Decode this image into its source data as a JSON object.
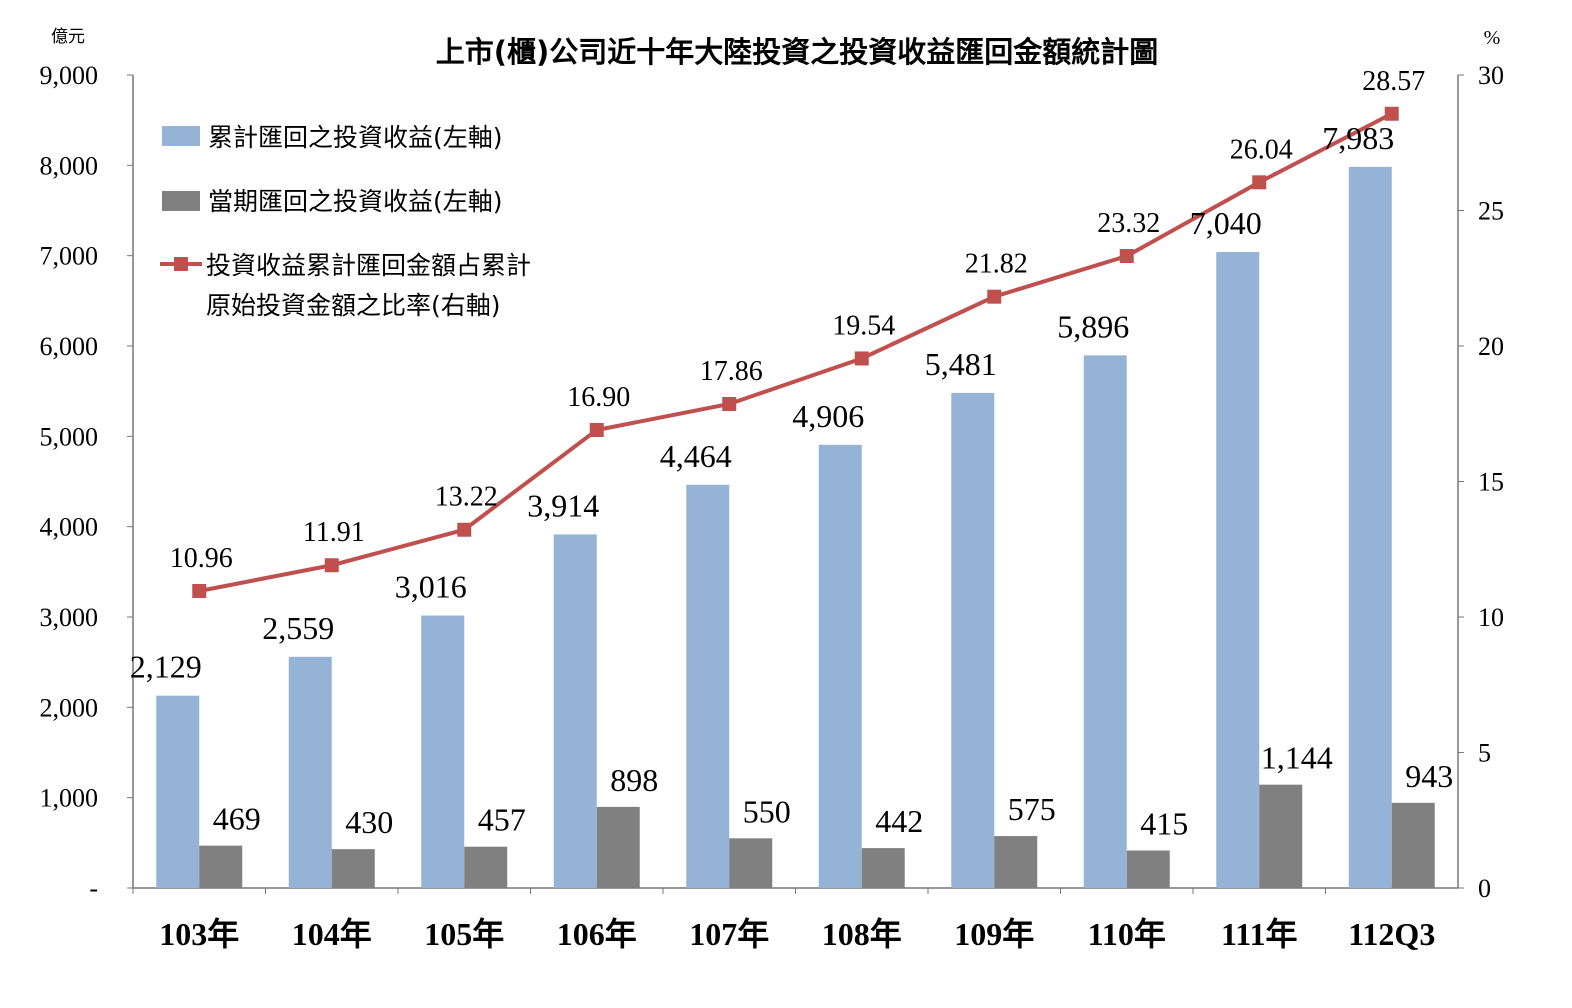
{
  "chart_data": {
    "type": "bar+line",
    "title": "上市(櫃)公司近十年大陸投資之投資收益匯回金額統計圖",
    "left_unit": "億元",
    "right_unit": "%",
    "categories": [
      "103年",
      "104年",
      "105年",
      "106年",
      "107年",
      "108年",
      "109年",
      "110年",
      "111年",
      "112Q3"
    ],
    "left_axis": {
      "range": [
        0,
        9000
      ],
      "ticks": [
        "-",
        "1,000",
        "2,000",
        "3,000",
        "4,000",
        "5,000",
        "6,000",
        "7,000",
        "8,000",
        "9,000"
      ]
    },
    "right_axis": {
      "range": [
        0,
        30
      ],
      "ticks": [
        "0",
        "5",
        "10",
        "15",
        "20",
        "25",
        "30"
      ]
    },
    "series": [
      {
        "name": "累計匯回之投資收益(左軸)",
        "type": "bar",
        "axis": "left",
        "color": "#95b3d7",
        "values": [
          2129,
          2559,
          3016,
          3914,
          4464,
          4906,
          5481,
          5896,
          7040,
          7983
        ],
        "labels": [
          "2,129",
          "2,559",
          "3,016",
          "3,914",
          "4,464",
          "4,906",
          "5,481",
          "5,896",
          "7,040",
          "7,983"
        ]
      },
      {
        "name": "當期匯回之投資收益(左軸)",
        "type": "bar",
        "axis": "left",
        "color": "#808080",
        "values": [
          469,
          430,
          457,
          898,
          550,
          442,
          575,
          415,
          1144,
          943
        ],
        "labels": [
          "469",
          "430",
          "457",
          "898",
          "550",
          "442",
          "575",
          "415",
          "1,144",
          "943"
        ]
      },
      {
        "name": "投資收益累計匯回金額占累計",
        "name_line2": "原始投資金額之比率(右軸)",
        "type": "line",
        "axis": "right",
        "color": "#c0504d",
        "values": [
          10.96,
          11.91,
          13.22,
          16.9,
          17.86,
          19.54,
          21.82,
          23.32,
          26.04,
          28.57
        ],
        "labels": [
          "10.96",
          "11.91",
          "13.22",
          "16.90",
          "17.86",
          "19.54",
          "21.82",
          "23.32",
          "26.04",
          "28.57"
        ]
      }
    ],
    "legend_position": "top-left",
    "grid": false
  }
}
